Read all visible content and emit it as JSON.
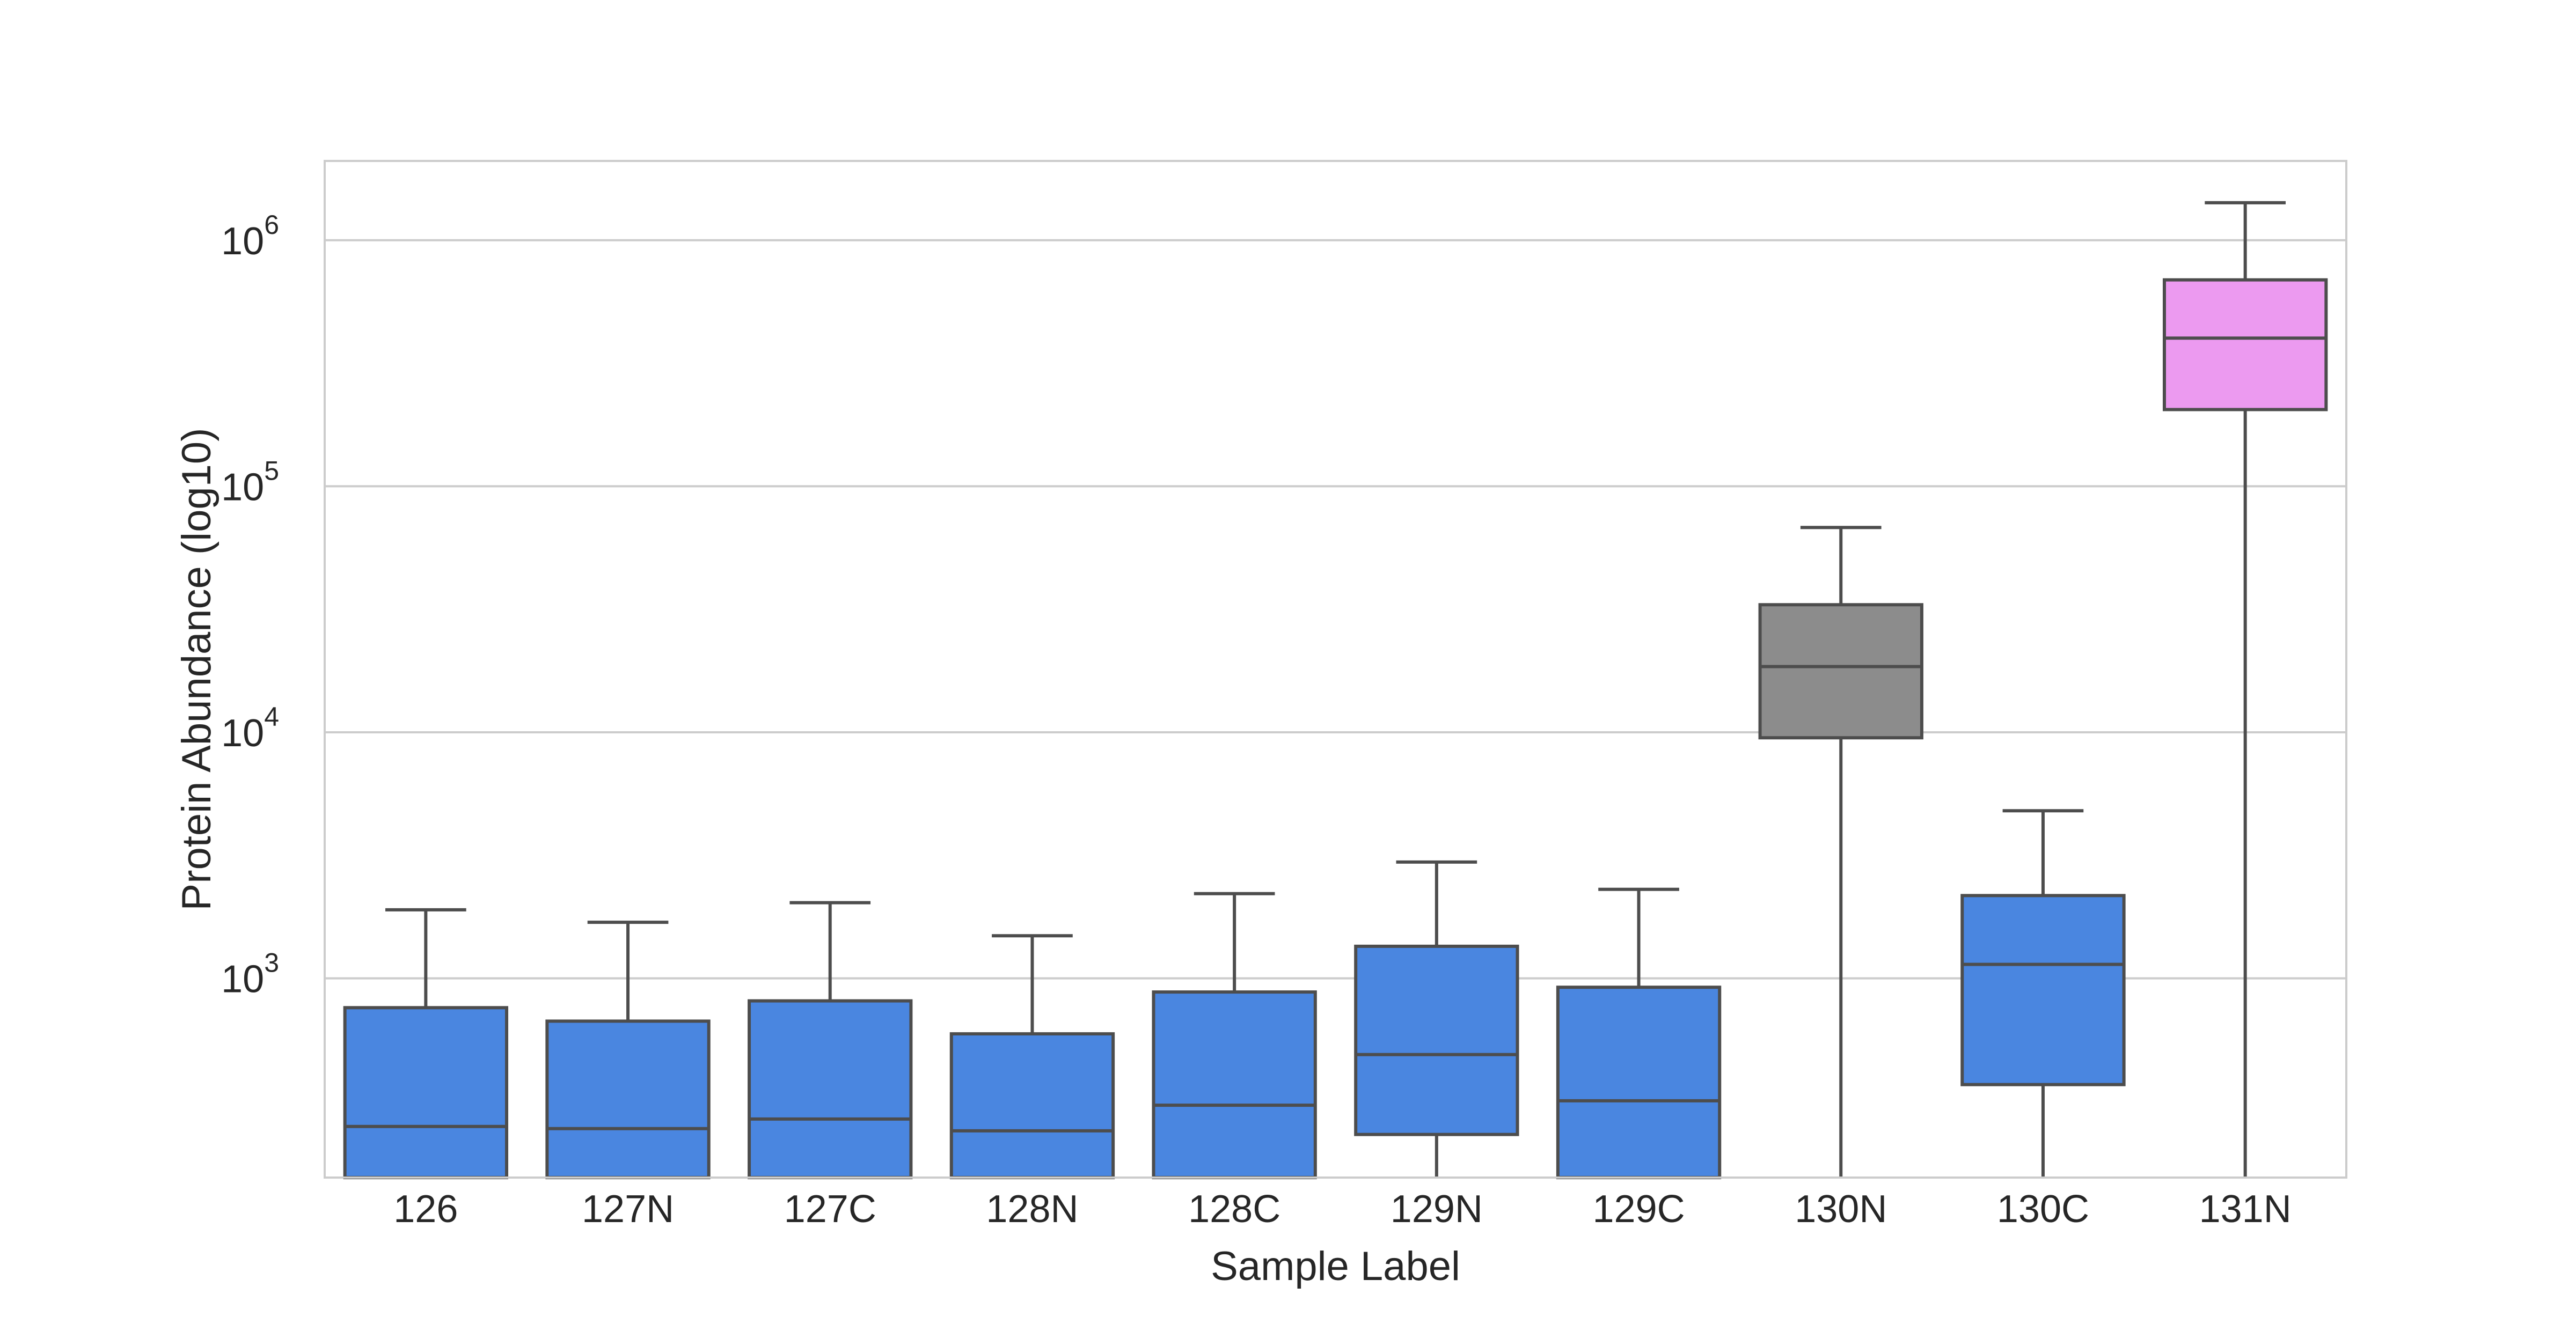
{
  "chart_data": {
    "type": "box",
    "xlabel": "Sample Label",
    "ylabel": "Protein Abundance (log10)",
    "yscale": "log",
    "ylim": [
      155,
      2100000
    ],
    "y_ticks": [
      {
        "value": 1000,
        "mantissa": "10",
        "exponent": "3"
      },
      {
        "value": 10000,
        "mantissa": "10",
        "exponent": "4"
      },
      {
        "value": 100000,
        "mantissa": "10",
        "exponent": "5"
      },
      {
        "value": 1000000,
        "mantissa": "10",
        "exponent": "6"
      }
    ],
    "grid": true,
    "categories": [
      "126",
      "127N",
      "127C",
      "128N",
      "128C",
      "129N",
      "129C",
      "130N",
      "130C",
      "131N"
    ],
    "boxes": [
      {
        "label": "126",
        "whisker_low": 155,
        "q1": 155,
        "median": 250,
        "q3": 760,
        "whisker_high": 1900,
        "color": "#4a86e0"
      },
      {
        "label": "127N",
        "whisker_low": 155,
        "q1": 155,
        "median": 245,
        "q3": 670,
        "whisker_high": 1690,
        "color": "#4a86e0"
      },
      {
        "label": "127C",
        "whisker_low": 155,
        "q1": 155,
        "median": 268,
        "q3": 810,
        "whisker_high": 2030,
        "color": "#4a86e0"
      },
      {
        "label": "128N",
        "whisker_low": 155,
        "q1": 155,
        "median": 240,
        "q3": 595,
        "whisker_high": 1490,
        "color": "#4a86e0"
      },
      {
        "label": "128C",
        "whisker_low": 155,
        "q1": 155,
        "median": 305,
        "q3": 880,
        "whisker_high": 2210,
        "color": "#4a86e0"
      },
      {
        "label": "129N",
        "whisker_low": 155,
        "q1": 232,
        "median": 490,
        "q3": 1350,
        "whisker_high": 2970,
        "color": "#4a86e0"
      },
      {
        "label": "129C",
        "whisker_low": 155,
        "q1": 155,
        "median": 318,
        "q3": 920,
        "whisker_high": 2300,
        "color": "#4a86e0"
      },
      {
        "label": "130N",
        "whisker_low": 155,
        "q1": 9500,
        "median": 18500,
        "q3": 33000,
        "whisker_high": 68000,
        "color": "#8c8c8c"
      },
      {
        "label": "130C",
        "whisker_low": 155,
        "q1": 370,
        "median": 1140,
        "q3": 2170,
        "whisker_high": 4800,
        "color": "#4a86e0"
      },
      {
        "label": "131N",
        "whisker_low": 155,
        "q1": 205000,
        "median": 400000,
        "q3": 690000,
        "whisker_high": 1420000,
        "color": "#ec9af0"
      }
    ],
    "edge_color": "#4d4d4d",
    "grid_color": "#cccccc"
  }
}
